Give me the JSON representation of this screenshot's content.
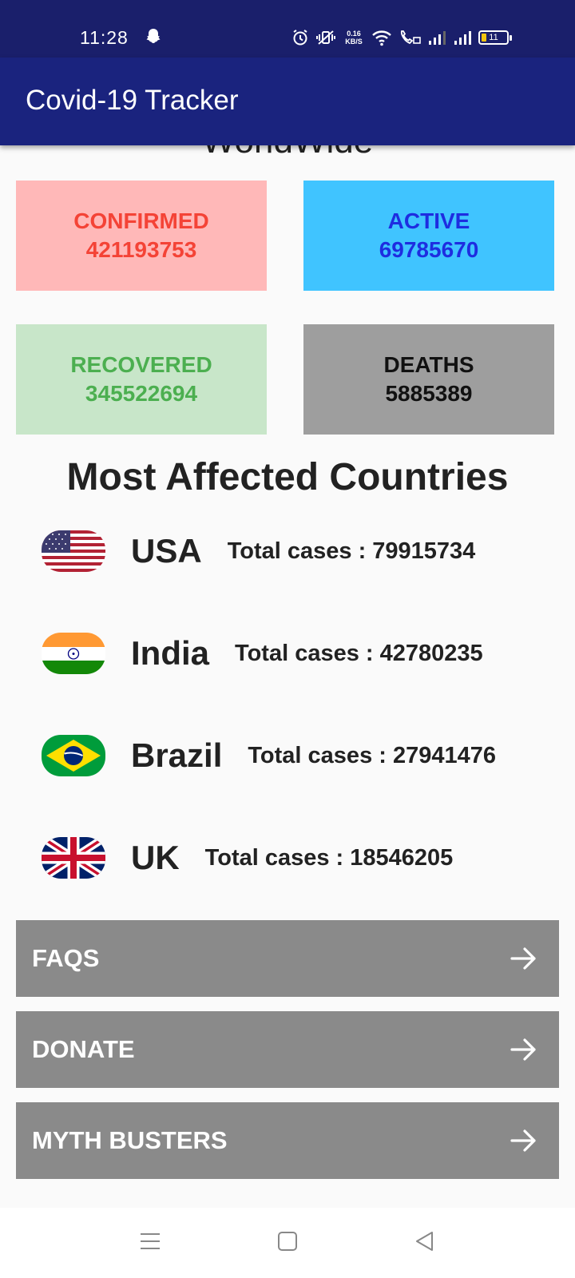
{
  "status_bar": {
    "time": "11:28",
    "net_speed_value": "0.16",
    "net_speed_unit": "KB/S",
    "battery": "11",
    "icons": [
      "snapchat-icon",
      "alarm-icon",
      "vibrate-icon",
      "wifi-icon",
      "call-icon",
      "signal-icon",
      "signal-icon",
      "battery-icon"
    ]
  },
  "app_bar": {
    "title": "Covid-19 Tracker"
  },
  "worldwide": {
    "heading": "WorldWide",
    "confirmed": {
      "label": "CONFIRMED",
      "value": "421193753",
      "bg": "#ffb8b8",
      "color": "#f44336"
    },
    "active": {
      "label": "ACTIVE",
      "value": "69785670",
      "bg": "#40c4ff",
      "color": "#1e2de0"
    },
    "recovered": {
      "label": "RECOVERED",
      "value": "345522694",
      "bg": "#c8e6c9",
      "color": "#4caf50"
    },
    "deaths": {
      "label": "DEATHS",
      "value": "5885389",
      "bg": "#9e9e9e",
      "color": "#111111"
    }
  },
  "most_affected": {
    "title": "Most Affected Countries",
    "countries": [
      {
        "name": "USA",
        "cases": "Total cases : 79915734",
        "flag": "usa-flag-icon"
      },
      {
        "name": "India",
        "cases": "Total cases : 42780235",
        "flag": "india-flag-icon"
      },
      {
        "name": "Brazil",
        "cases": "Total cases : 27941476",
        "flag": "brazil-flag-icon"
      },
      {
        "name": "UK",
        "cases": "Total cases : 18546205",
        "flag": "uk-flag-icon"
      }
    ]
  },
  "menu": [
    {
      "label": "FAQS",
      "icon": "arrow-right-icon"
    },
    {
      "label": "DONATE",
      "icon": "arrow-right-icon"
    },
    {
      "label": "MYTH BUSTERS",
      "icon": "arrow-right-icon"
    }
  ],
  "nav_bar": {
    "icons": [
      "menu-icon",
      "home-square-icon",
      "back-triangle-icon"
    ]
  },
  "colors": {
    "status_bar": "#1a1f6b",
    "app_bar": "#1a237e",
    "menu_button": "#8a8a8a",
    "background": "#fafafa"
  }
}
